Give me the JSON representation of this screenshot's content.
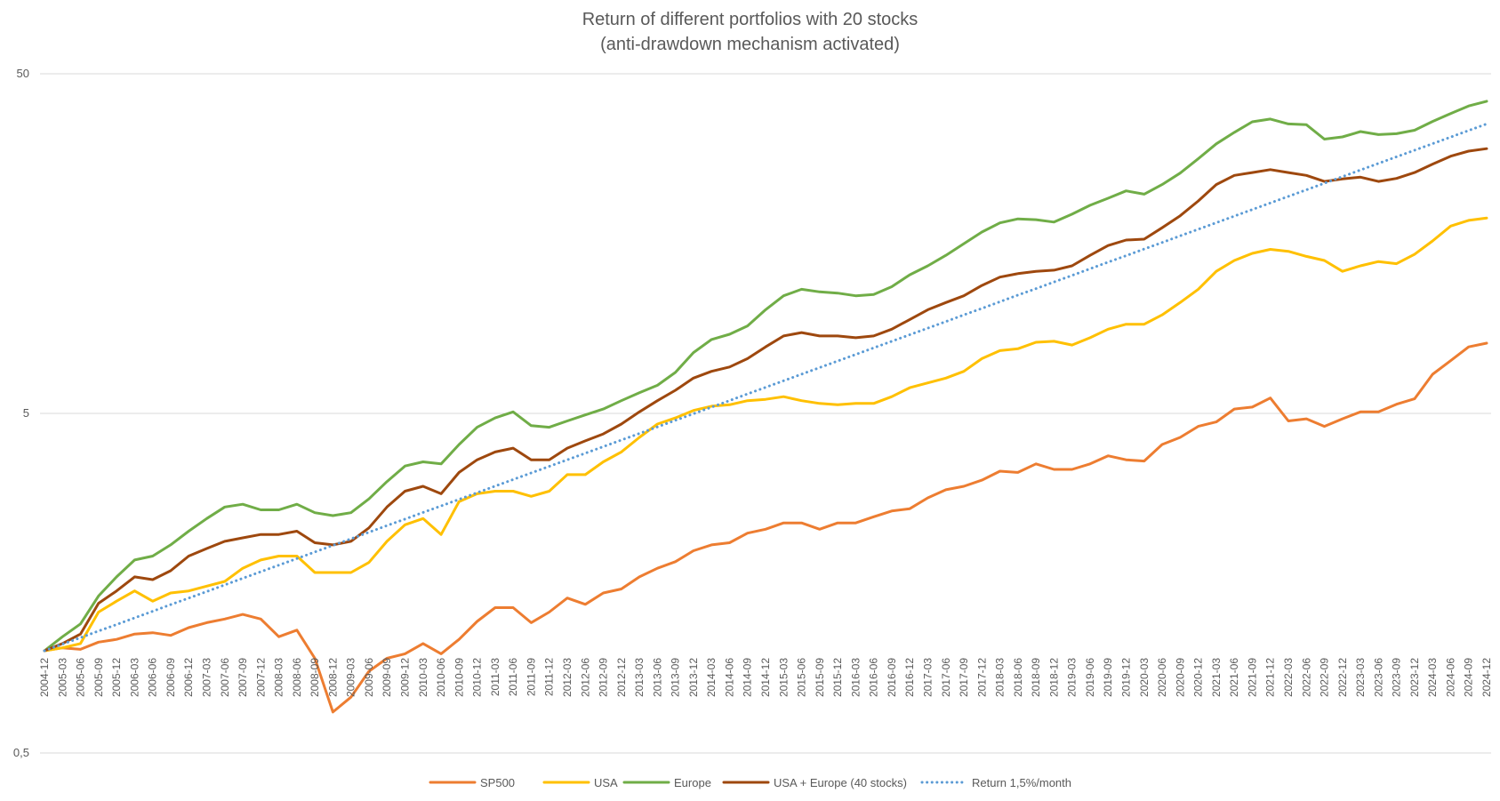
{
  "chart_data": {
    "type": "line",
    "title": "Return of different portfolios with 20 stocks",
    "subtitle": "(anti-drawdown mechanism activated)",
    "y_scale": "log",
    "ylim": [
      0.5,
      50
    ],
    "y_ticks": [
      0.5,
      5,
      50
    ],
    "y_tick_labels": [
      "0,5",
      "5",
      "50"
    ],
    "grid": "horizontal",
    "legend_position": "bottom",
    "x_tick_labels": [
      "2004-12",
      "2005-03",
      "2005-06",
      "2005-09",
      "2005-12",
      "2006-03",
      "2006-06",
      "2006-09",
      "2006-12",
      "2007-03",
      "2007-06",
      "2007-09",
      "2007-12",
      "2008-03",
      "2008-06",
      "2008-09",
      "2008-12",
      "2009-03",
      "2009-06",
      "2009-09",
      "2009-12",
      "2010-03",
      "2010-06",
      "2010-09",
      "2010-12",
      "2011-03",
      "2011-06",
      "2011-09",
      "2011-12",
      "2012-03",
      "2012-06",
      "2012-09",
      "2012-12",
      "2013-03",
      "2013-06",
      "2013-09",
      "2013-12",
      "2014-03",
      "2014-06",
      "2014-09",
      "2014-12",
      "2015-03",
      "2015-06",
      "2015-09",
      "2015-12",
      "2016-03",
      "2016-06",
      "2016-09",
      "2016-12",
      "2017-03",
      "2017-06",
      "2017-09",
      "2017-12",
      "2018-03",
      "2018-06",
      "2018-09",
      "2018-12",
      "2019-03",
      "2019-06",
      "2019-09",
      "2019-12",
      "2020-03",
      "2020-06",
      "2020-09",
      "2020-12",
      "2021-03",
      "2021-06",
      "2021-09",
      "2021-12",
      "2022-03",
      "2022-06",
      "2022-09",
      "2022-12",
      "2023-03",
      "2023-06",
      "2023-09",
      "2023-12",
      "2024-03",
      "2024-06",
      "2024-09",
      "2024-12"
    ],
    "x_unit": "quarter-end month",
    "series": [
      {
        "name": "SP500",
        "color": "#ED7D31",
        "style": "solid",
        "values": [
          1.0,
          1.02,
          1.01,
          1.06,
          1.08,
          1.12,
          1.13,
          1.11,
          1.17,
          1.21,
          1.24,
          1.28,
          1.24,
          1.1,
          1.15,
          0.95,
          0.66,
          0.73,
          0.87,
          0.95,
          0.98,
          1.05,
          0.98,
          1.08,
          1.22,
          1.34,
          1.34,
          1.21,
          1.3,
          1.43,
          1.37,
          1.48,
          1.52,
          1.65,
          1.75,
          1.83,
          1.97,
          2.05,
          2.08,
          2.22,
          2.28,
          2.38,
          2.38,
          2.28,
          2.38,
          2.38,
          2.48,
          2.58,
          2.62,
          2.82,
          2.98,
          3.05,
          3.18,
          3.38,
          3.35,
          3.55,
          3.42,
          3.42,
          3.55,
          3.75,
          3.65,
          3.62,
          4.05,
          4.25,
          4.58,
          4.72,
          5.15,
          5.22,
          5.55,
          4.75,
          4.82,
          4.58,
          4.82,
          5.05,
          5.05,
          5.32,
          5.52,
          6.52,
          7.15,
          7.85,
          8.05
        ]
      },
      {
        "name": "USA",
        "color": "#FFC000",
        "style": "solid",
        "values": [
          1.0,
          1.02,
          1.05,
          1.3,
          1.4,
          1.5,
          1.4,
          1.48,
          1.5,
          1.55,
          1.6,
          1.75,
          1.85,
          1.9,
          1.9,
          1.7,
          1.7,
          1.7,
          1.82,
          2.1,
          2.35,
          2.45,
          2.2,
          2.75,
          2.9,
          2.95,
          2.95,
          2.85,
          2.95,
          3.3,
          3.3,
          3.6,
          3.85,
          4.25,
          4.65,
          4.85,
          5.1,
          5.25,
          5.3,
          5.45,
          5.5,
          5.6,
          5.45,
          5.35,
          5.3,
          5.35,
          5.35,
          5.6,
          5.95,
          6.15,
          6.35,
          6.65,
          7.25,
          7.65,
          7.75,
          8.1,
          8.15,
          7.95,
          8.35,
          8.85,
          9.15,
          9.15,
          9.75,
          10.6,
          11.6,
          13.1,
          14.1,
          14.8,
          15.2,
          15.0,
          14.5,
          14.1,
          13.1,
          13.6,
          14.0,
          13.8,
          14.7,
          16.1,
          17.8,
          18.5,
          18.8
        ]
      },
      {
        "name": "Europe",
        "color": "#70AD47",
        "style": "solid",
        "values": [
          1.0,
          1.1,
          1.2,
          1.45,
          1.65,
          1.85,
          1.9,
          2.05,
          2.25,
          2.45,
          2.65,
          2.7,
          2.6,
          2.6,
          2.7,
          2.55,
          2.5,
          2.55,
          2.8,
          3.15,
          3.5,
          3.6,
          3.55,
          4.05,
          4.55,
          4.85,
          5.05,
          4.6,
          4.55,
          4.75,
          4.95,
          5.15,
          5.45,
          5.75,
          6.05,
          6.6,
          7.55,
          8.25,
          8.55,
          9.05,
          10.1,
          11.1,
          11.6,
          11.4,
          11.3,
          11.1,
          11.2,
          11.8,
          12.8,
          13.6,
          14.6,
          15.8,
          17.1,
          18.2,
          18.7,
          18.6,
          18.3,
          19.3,
          20.5,
          21.5,
          22.6,
          22.1,
          23.6,
          25.5,
          28.1,
          31.1,
          33.6,
          36.1,
          36.8,
          35.6,
          35.4,
          32.1,
          32.6,
          33.8,
          33.1,
          33.3,
          34.1,
          36.2,
          38.2,
          40.2,
          41.5
        ]
      },
      {
        "name": "USA + Europe (40 stocks)",
        "color": "#9E480E",
        "style": "solid",
        "values": [
          1.0,
          1.05,
          1.12,
          1.38,
          1.5,
          1.65,
          1.62,
          1.72,
          1.9,
          2.0,
          2.1,
          2.15,
          2.2,
          2.2,
          2.25,
          2.08,
          2.05,
          2.1,
          2.3,
          2.65,
          2.95,
          3.05,
          2.9,
          3.35,
          3.65,
          3.85,
          3.95,
          3.65,
          3.65,
          3.95,
          4.15,
          4.35,
          4.65,
          5.05,
          5.45,
          5.85,
          6.35,
          6.65,
          6.85,
          7.25,
          7.85,
          8.45,
          8.65,
          8.45,
          8.45,
          8.35,
          8.45,
          8.85,
          9.45,
          10.1,
          10.6,
          11.1,
          11.9,
          12.6,
          12.9,
          13.1,
          13.2,
          13.6,
          14.6,
          15.6,
          16.2,
          16.3,
          17.6,
          19.1,
          21.1,
          23.6,
          25.1,
          25.6,
          26.1,
          25.6,
          25.1,
          24.1,
          24.5,
          24.8,
          24.1,
          24.6,
          25.6,
          27.1,
          28.6,
          29.6,
          30.1
        ]
      },
      {
        "name": "Return 1,5%/month",
        "color": "#5B9BD5",
        "style": "dotted",
        "values": [
          1.0,
          1.046,
          1.093,
          1.143,
          1.195,
          1.25,
          1.307,
          1.367,
          1.429,
          1.494,
          1.563,
          1.634,
          1.709,
          1.787,
          1.868,
          1.954,
          2.043,
          2.136,
          2.234,
          2.336,
          2.442,
          2.554,
          2.67,
          2.792,
          2.92,
          3.053,
          3.193,
          3.339,
          3.491,
          3.65,
          3.817,
          3.991,
          4.173,
          4.364,
          4.563,
          4.771,
          4.989,
          5.217,
          5.455,
          5.704,
          5.965,
          6.237,
          6.522,
          6.82,
          7.131,
          7.457,
          7.797,
          8.153,
          8.526,
          8.915,
          9.322,
          9.748,
          10.19,
          10.66,
          11.15,
          11.65,
          12.19,
          12.74,
          13.33,
          13.94,
          14.57,
          15.24,
          15.93,
          16.66,
          17.42,
          18.22,
          19.05,
          19.92,
          20.83,
          21.78,
          22.77,
          23.81,
          24.9,
          26.04,
          27.23,
          28.47,
          29.77,
          31.13,
          32.55,
          34.04,
          35.59
        ]
      }
    ]
  }
}
